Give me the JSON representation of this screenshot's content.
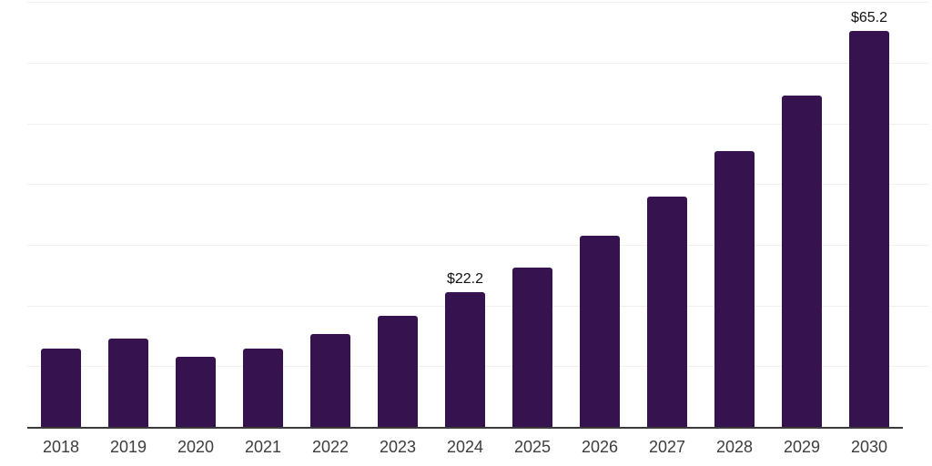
{
  "chart_data": {
    "type": "bar",
    "title": "",
    "xlabel": "",
    "ylabel": "",
    "categories": [
      "2018",
      "2019",
      "2020",
      "2021",
      "2022",
      "2023",
      "2024",
      "2025",
      "2026",
      "2027",
      "2028",
      "2029",
      "2030"
    ],
    "values": [
      12.9,
      14.5,
      11.5,
      12.9,
      15.3,
      18.3,
      22.2,
      26.3,
      31.5,
      38.0,
      45.5,
      54.6,
      65.2
    ],
    "data_labels": {
      "2024": "$22.2",
      "2030": "$65.2"
    },
    "ylim": [
      0,
      70
    ],
    "grid": true,
    "grid_interval": 10,
    "y_tick_labels_shown": false,
    "legend_position": "none",
    "colors": {
      "bar": "#36124F",
      "grid_line": "#f0f0f0",
      "axis_line": "#3b3b3b",
      "tick_label": "#3d3d3d",
      "value_label": "#111111",
      "background": "#ffffff"
    }
  }
}
